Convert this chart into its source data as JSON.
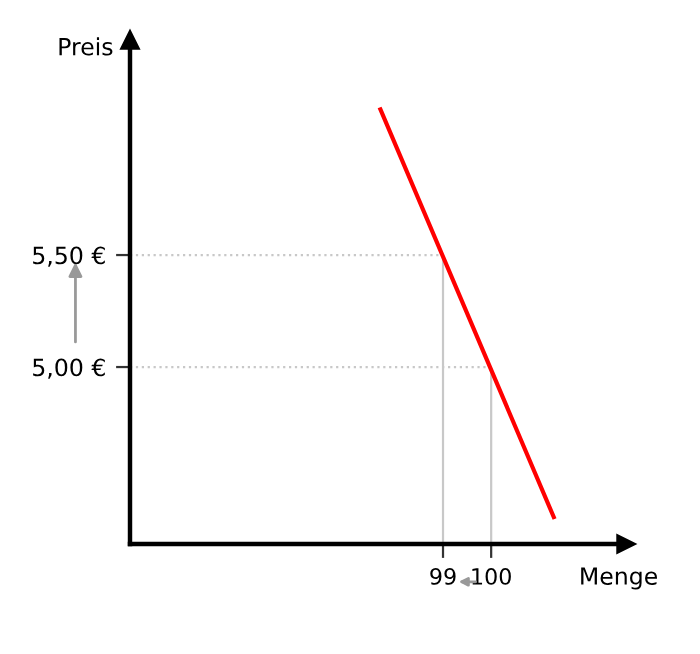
{
  "chart_data": {
    "type": "line",
    "xlabel": "Menge",
    "ylabel": "Preis",
    "x": [
      97.7,
      101.3
    ],
    "series": [
      {
        "color": "#ff0000",
        "values": [
          6.15,
          4.33
        ]
      }
    ],
    "xlim": [
      92.5,
      102.8
    ],
    "ylim": [
      4.21,
      6.46
    ],
    "xticks": [
      99,
      100
    ],
    "yticks": [
      {
        "value": 5.0,
        "label": "5,00 €"
      },
      {
        "value": 5.5,
        "label": "5,50 €"
      }
    ],
    "ref_lines": [
      {
        "axis": "y",
        "value": 5.5,
        "color": "#c8c8c8",
        "line_style": "dotted"
      },
      {
        "axis": "y",
        "value": 5.0,
        "color": "#c8c8c8",
        "line_style": "dotted"
      },
      {
        "axis": "x",
        "value": 99,
        "color": "#c8c8c8",
        "line_style": "solid"
      },
      {
        "axis": "x",
        "value": 100,
        "color": "#c8c8c8",
        "line_style": "solid"
      }
    ]
  }
}
